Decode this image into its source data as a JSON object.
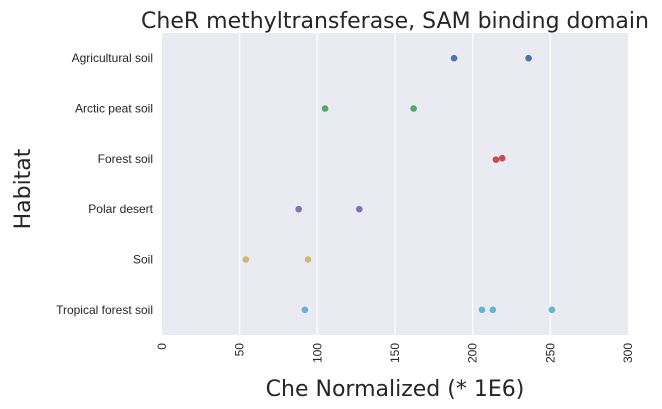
{
  "chart_data": {
    "type": "scatter",
    "title": "CheR methyltransferase, SAM binding domain",
    "xlabel": "Che Normalized (* 1E6)",
    "ylabel": "Habitat",
    "xlim": [
      0,
      300
    ],
    "xticks": [
      "0",
      "50",
      "100",
      "150",
      "200",
      "250",
      "300"
    ],
    "categories": [
      "Agricultural soil",
      "Arctic peat soil",
      "Forest soil",
      "Polar desert",
      "Soil",
      "Tropical forest soil"
    ],
    "grid": true,
    "series": [
      {
        "category": "Agricultural soil",
        "color": "#4c72b0",
        "points": [
          [
            188,
            0
          ],
          [
            236,
            0
          ]
        ]
      },
      {
        "category": "Arctic peat soil",
        "color": "#55a868",
        "points": [
          [
            105,
            0
          ],
          [
            162,
            0
          ]
        ]
      },
      {
        "category": "Forest soil",
        "color": "#c44e52",
        "points": [
          [
            215,
            0.04
          ],
          [
            219,
            -0.03
          ]
        ]
      },
      {
        "category": "Polar desert",
        "color": "#8172b2",
        "points": [
          [
            88,
            0
          ],
          [
            127,
            0
          ]
        ]
      },
      {
        "category": "Soil",
        "color": "#ccb974",
        "points": [
          [
            54,
            0
          ],
          [
            94,
            0
          ]
        ]
      },
      {
        "category": "Tropical forest soil",
        "color": "#64b5cd",
        "points": [
          [
            92,
            0
          ],
          [
            206,
            0
          ],
          [
            213,
            0
          ],
          [
            251,
            0
          ]
        ]
      }
    ]
  }
}
